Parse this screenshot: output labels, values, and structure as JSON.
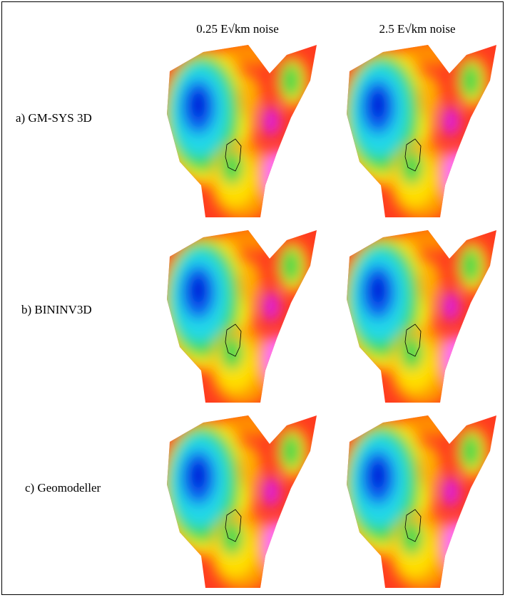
{
  "columns": [
    "0.25 E√km noise",
    "2.5 E√km noise"
  ],
  "rows": [
    "a) GM-SYS 3D",
    "b) BININV3D",
    "c) Geomodeller"
  ]
}
